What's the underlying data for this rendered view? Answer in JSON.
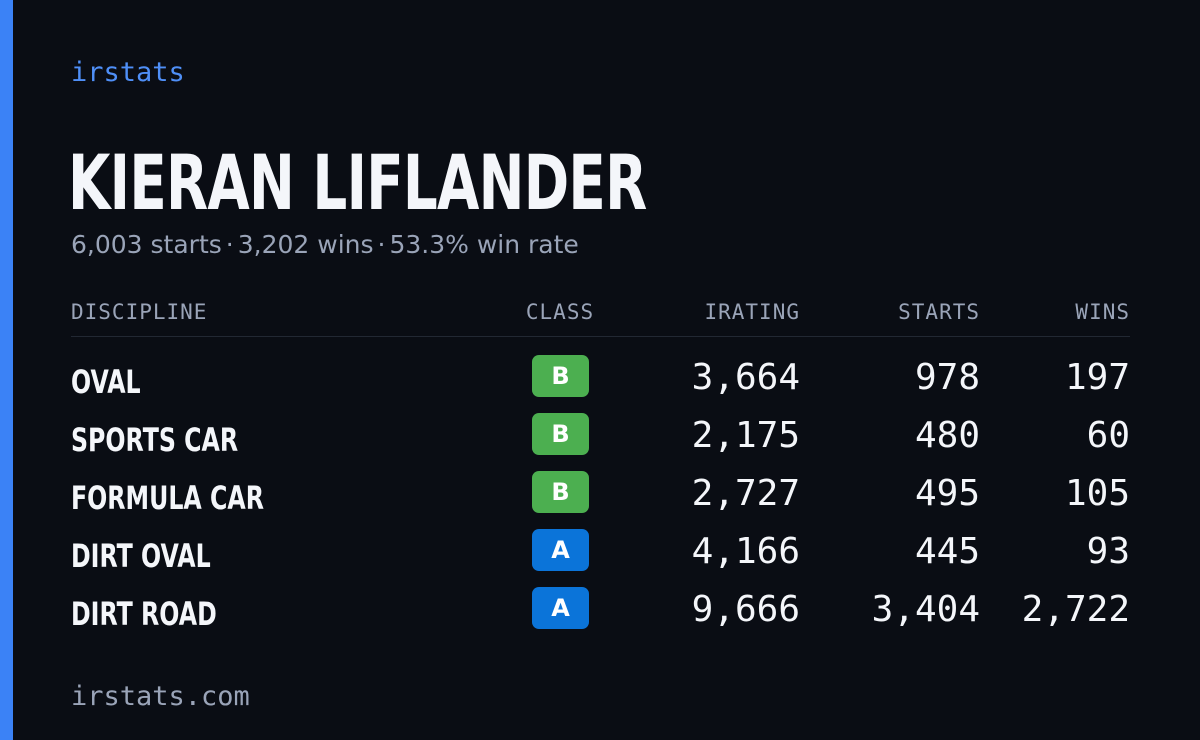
{
  "brand": "irstats",
  "driver": {
    "name": "KIERAN LIFLANDER",
    "starts_text": "6,003 starts",
    "wins_text": "3,202 wins",
    "win_rate_text": "53.3% win rate",
    "separator": "·"
  },
  "table": {
    "headers": {
      "discipline": "DISCIPLINE",
      "class": "CLASS",
      "irating": "IRATING",
      "starts": "STARTS",
      "wins": "WINS"
    },
    "rows": [
      {
        "discipline": "OVAL",
        "class": "B",
        "irating": "3,664",
        "starts": "978",
        "wins": "197"
      },
      {
        "discipline": "SPORTS CAR",
        "class": "B",
        "irating": "2,175",
        "starts": "480",
        "wins": "60"
      },
      {
        "discipline": "FORMULA CAR",
        "class": "B",
        "irating": "2,727",
        "starts": "495",
        "wins": "105"
      },
      {
        "discipline": "DIRT OVAL",
        "class": "A",
        "irating": "4,166",
        "starts": "445",
        "wins": "93"
      },
      {
        "discipline": "DIRT ROAD",
        "class": "A",
        "irating": "9,666",
        "starts": "3,404",
        "wins": "2,722"
      }
    ]
  },
  "footer": {
    "site": "irstats.com"
  },
  "colors": {
    "background": "#0a0d14",
    "accent": "#3b82f6",
    "class_b": "#4caf50",
    "class_a": "#0b74d9"
  }
}
